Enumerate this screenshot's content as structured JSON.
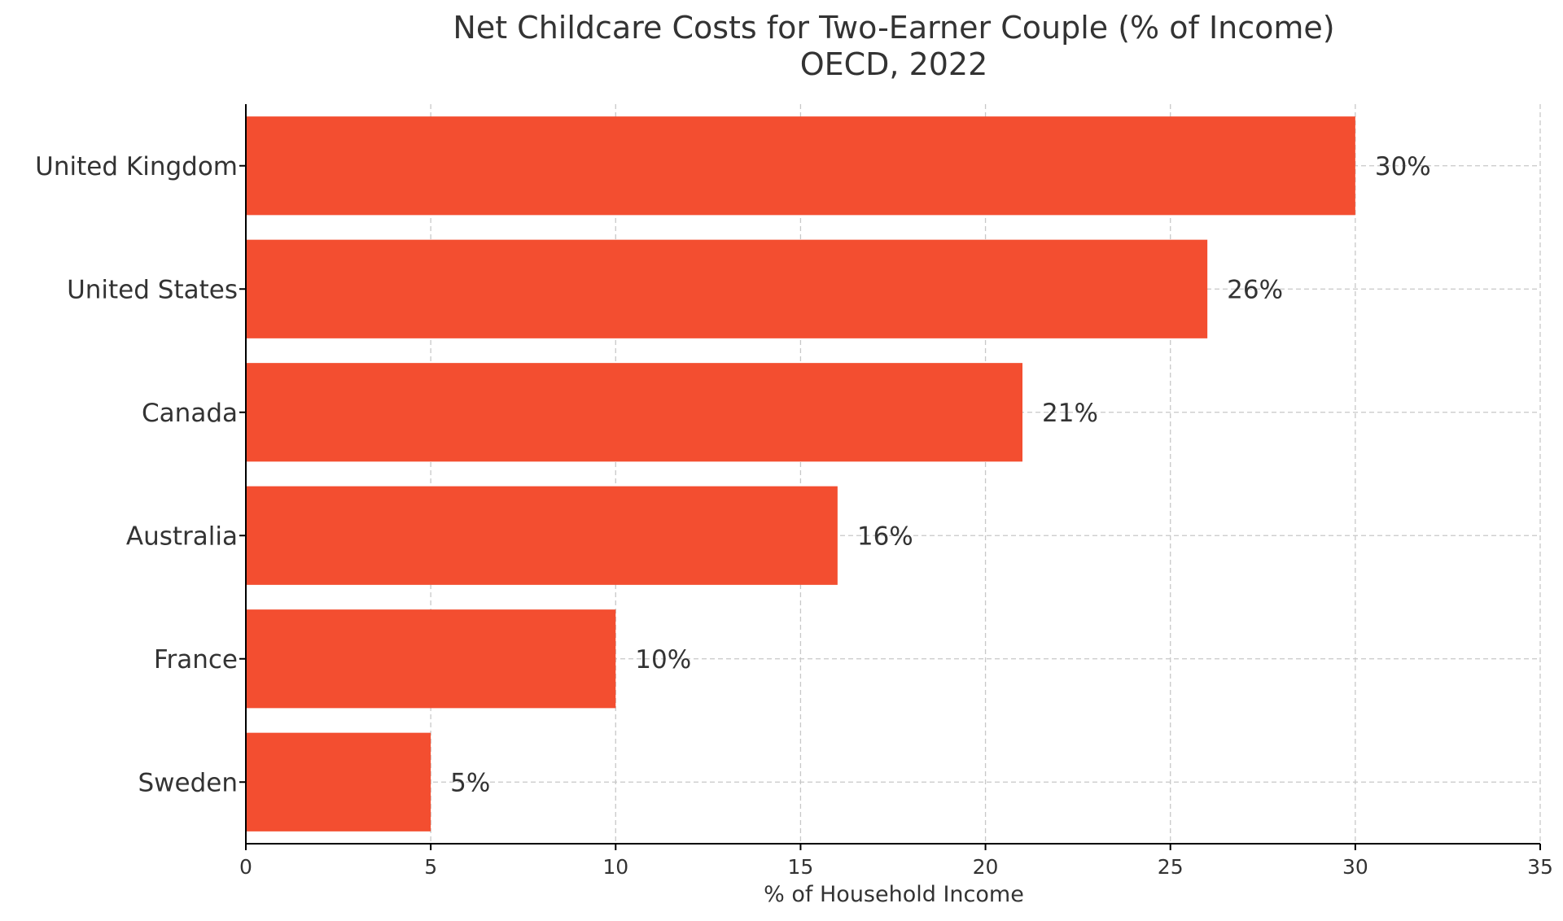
{
  "chart_data": {
    "type": "bar",
    "orientation": "horizontal",
    "title": "Net Childcare Costs for Two-Earner Couple (% of Income)",
    "subtitle": "OECD, 2022",
    "xlabel": "% of Household Income",
    "ylabel": "",
    "xlim": [
      0,
      35
    ],
    "x_ticks": [
      0,
      5,
      10,
      15,
      20,
      25,
      30,
      35
    ],
    "categories": [
      "United Kingdom",
      "United States",
      "Canada",
      "Australia",
      "France",
      "Sweden"
    ],
    "values": [
      30,
      26,
      21,
      16,
      10,
      5
    ],
    "value_labels": [
      "30%",
      "26%",
      "21%",
      "16%",
      "10%",
      "5%"
    ],
    "bar_color": "#f34e30",
    "grid": true,
    "grid_style": "dashed",
    "legend": "none"
  }
}
